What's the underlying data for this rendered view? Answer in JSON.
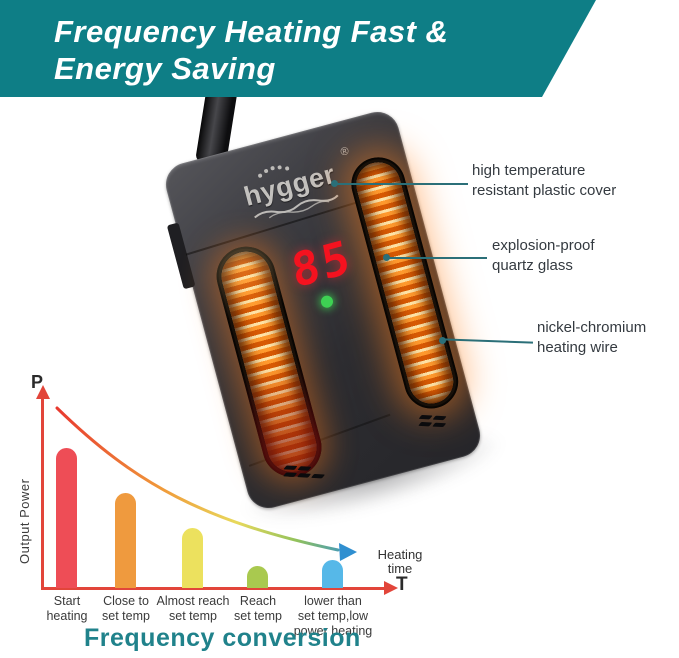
{
  "banner": {
    "line1": "Frequency Heating Fast &",
    "line2": "Energy Saving",
    "bg_color": "#0e7e86",
    "text_color": "#ffffff"
  },
  "device": {
    "brand": "hygger",
    "registered_mark": "®",
    "display_value": "85",
    "display_color": "#f5121f",
    "led_color": "#3ed153",
    "body_color": "#2e2e32",
    "heat_glow_color": "#ff8c1f"
  },
  "annotations": {
    "text_color": "#343a40",
    "leader_color": "#2b6f78",
    "items": [
      {
        "lines": [
          "high temperature",
          "resistant plastic cover"
        ]
      },
      {
        "lines": [
          "explosion-proof",
          "quartz glass"
        ]
      },
      {
        "lines": [
          "nickel-chromium",
          "heating wire"
        ]
      }
    ]
  },
  "chart_data": {
    "type": "bar",
    "title": "Frequency conversion",
    "title_color": "#20828b",
    "y_axis_symbol": "P",
    "x_axis_symbol": "T",
    "ylabel": "Output Power",
    "xlabel": "Heating time",
    "xlabel_lines": [
      "Heating",
      "time"
    ],
    "categories": [
      "Start heating",
      "Close to set temp",
      "Almost reach set temp",
      "Reach set temp",
      "lower than set temp,low power heating"
    ],
    "label_lines": [
      [
        "Start",
        "heating"
      ],
      [
        "Close to",
        "set temp"
      ],
      [
        "Almost reach",
        "set temp"
      ],
      [
        "Reach",
        "set temp"
      ],
      [
        "lower than",
        "set temp,low",
        "power heating"
      ]
    ],
    "values": [
      100,
      68,
      43,
      16,
      20
    ],
    "unit": "relative output power (% of max)",
    "ylim": [
      0,
      100
    ],
    "bar_colors": [
      "#ee4d56",
      "#ef9a3e",
      "#ece15e",
      "#a9c94f",
      "#56b8e8"
    ],
    "axis_color": "#e2453a",
    "grid": false,
    "legend": false,
    "curve": {
      "description": "decaying output-power curve over heating time ending in arrow",
      "gradient": [
        "#e8392f",
        "#f09a3a",
        "#e8d95c",
        "#93c25c",
        "#2f8fd0"
      ]
    }
  }
}
